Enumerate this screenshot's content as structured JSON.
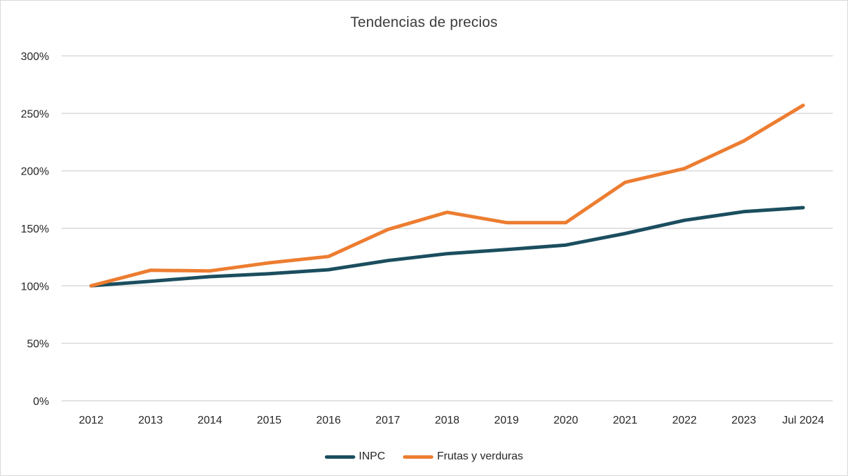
{
  "chart_data": {
    "type": "line",
    "title": "Tendencias de precios",
    "categories": [
      "2012",
      "2013",
      "2014",
      "2015",
      "2016",
      "2017",
      "2018",
      "2019",
      "2020",
      "2021",
      "2022",
      "2023",
      "Jul 2024"
    ],
    "series": [
      {
        "name": "INPC",
        "color": "#1B4E5F",
        "values": [
          100,
          104,
          108,
          110.5,
          114,
          122,
          128,
          131.5,
          135.5,
          145.5,
          157,
          164.5,
          168
        ]
      },
      {
        "name": "Frutas y verduras",
        "color": "#ED7D31",
        "values": [
          100,
          113.5,
          113,
          120,
          125.5,
          149,
          164,
          155,
          155,
          190,
          202,
          226,
          257
        ]
      }
    ],
    "ylabel_format": "percent",
    "ylim": [
      0,
      300
    ],
    "ytick_step": 50,
    "ytick_labels": [
      "0%",
      "50%",
      "100%",
      "150%",
      "200%",
      "250%",
      "300%"
    ],
    "grid": "horizontal",
    "legend_position": "bottom",
    "colors": {
      "gridline": "#D9D9D9",
      "axis_text": "#262626",
      "title_text": "#3B3B3B",
      "border": "#D9D9D9",
      "background": "#FFFFFF"
    }
  }
}
